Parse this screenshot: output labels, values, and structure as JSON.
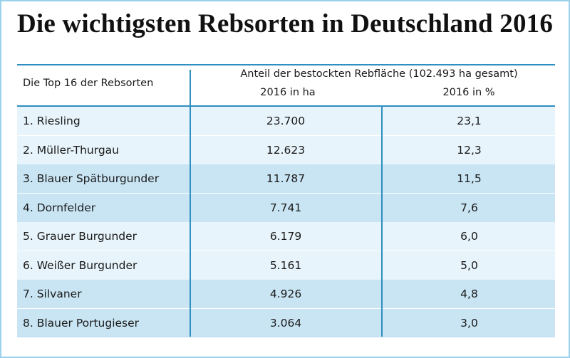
{
  "title": "Die wichtigsten Rebsorten in Deutschland 2016",
  "header": {
    "left_label": "Die Top 16 der Rebsorten",
    "main_label": "Anteil der bestockten Rebfläche  (102.493 ha gesamt)",
    "col_ha": "2016 in ha",
    "col_pct": "2016 in %"
  },
  "chart_data": {
    "type": "table",
    "title": "Die wichtigsten Rebsorten in Deutschland 2016",
    "columns": [
      "Die Top 16 der Rebsorten",
      "2016 in ha",
      "2016 in %"
    ],
    "rows": [
      {
        "name": "1.  Riesling",
        "ha": "23.700",
        "pct": "23,1",
        "shade": "light"
      },
      {
        "name": "2.  Müller-Thurgau",
        "ha": "12.623",
        "pct": "12,3",
        "shade": "light"
      },
      {
        "name": "3.  Blauer Spätburgunder",
        "ha": "11.787",
        "pct": "11,5",
        "shade": "dark"
      },
      {
        "name": "4.  Dornfelder",
        "ha": "7.741",
        "pct": "7,6",
        "shade": "dark"
      },
      {
        "name": "5.  Grauer Burgunder",
        "ha": "6.179",
        "pct": "6,0",
        "shade": "light"
      },
      {
        "name": "6.  Weißer Burgunder",
        "ha": "5.161",
        "pct": "5,0",
        "shade": "light"
      },
      {
        "name": "7.  Silvaner",
        "ha": "4.926",
        "pct": "4,8",
        "shade": "dark"
      },
      {
        "name": "8.  Blauer Portugieser",
        "ha": "3.064",
        "pct": "3,0",
        "shade": "dark"
      }
    ]
  },
  "colors": {
    "rule": "#2f8fc0",
    "row_light": "#e7f4fb",
    "row_dark": "#c9e5f4",
    "frame": "#9ad1ec"
  }
}
